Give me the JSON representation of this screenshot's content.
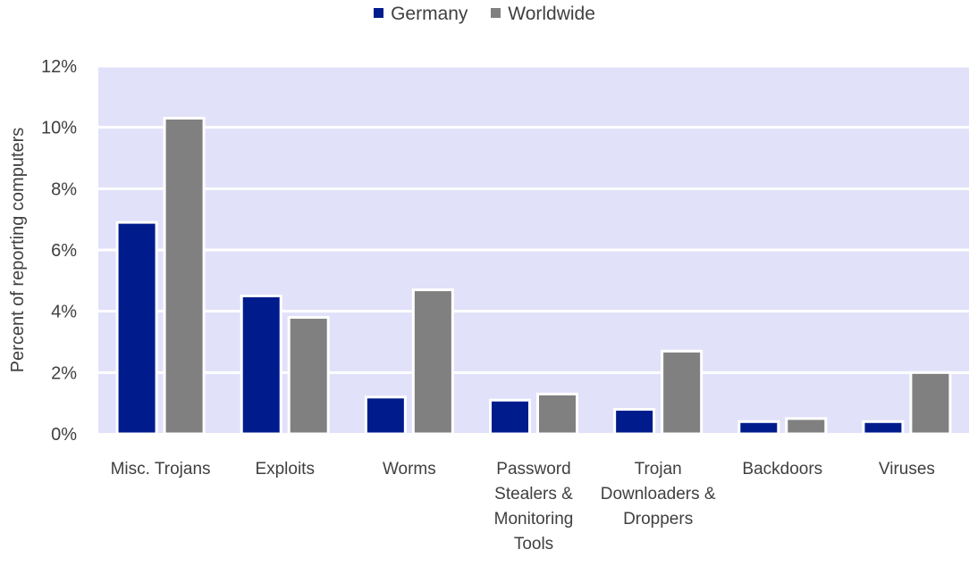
{
  "chart_data": {
    "type": "bar",
    "title": "",
    "xlabel": "",
    "ylabel": "Percent of reporting computers",
    "ylim": [
      0,
      12
    ],
    "yticks": [
      "0%",
      "2%",
      "4%",
      "6%",
      "8%",
      "10%",
      "12%"
    ],
    "categories": [
      [
        "Misc. Trojans"
      ],
      [
        "Exploits"
      ],
      [
        "Worms"
      ],
      [
        "Password",
        "Stealers &",
        "Monitoring",
        "Tools"
      ],
      [
        "Trojan",
        "Downloaders &",
        "Droppers"
      ],
      [
        "Backdoors"
      ],
      [
        "Viruses"
      ]
    ],
    "series": [
      {
        "name": "Germany",
        "color": "#001c8c",
        "values": [
          6.9,
          4.5,
          1.2,
          1.1,
          0.8,
          0.4,
          0.4
        ]
      },
      {
        "name": "Worldwide",
        "color": "#808080",
        "values": [
          10.3,
          3.8,
          4.7,
          1.3,
          2.7,
          0.5,
          2.0
        ]
      }
    ],
    "grid": true,
    "legend_position": "top-center",
    "plot_background": "#e1e1fa"
  }
}
